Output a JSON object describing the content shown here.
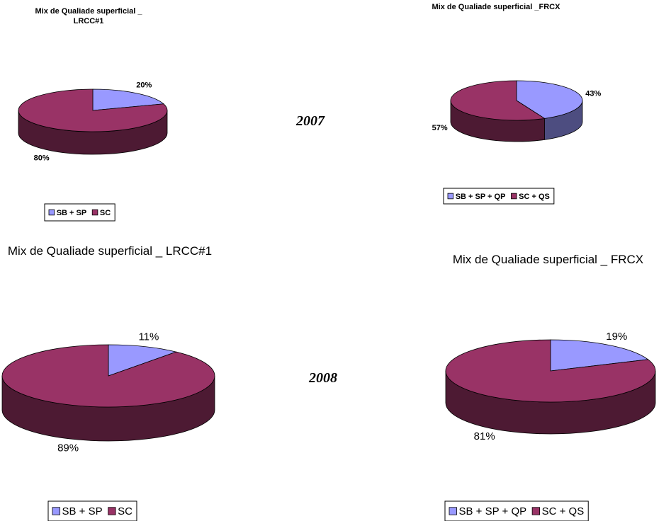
{
  "year_labels": [
    "2007",
    "2008"
  ],
  "chart_data": [
    {
      "type": "pie",
      "title": "Mix de Qualiade superficial _ LRCC#1",
      "categories": [
        "SB + SP",
        "SC"
      ],
      "values": [
        20,
        80
      ],
      "value_labels": [
        "20%",
        "80%"
      ],
      "colors": [
        "#9999ff",
        "#993366"
      ],
      "legend": "bottom"
    },
    {
      "type": "pie",
      "title": "Mix de Qualiade superficial _FRCX",
      "categories": [
        "SB + SP + QP",
        "SC + QS"
      ],
      "values": [
        43,
        57
      ],
      "value_labels": [
        "43%",
        "57%"
      ],
      "colors": [
        "#9999ff",
        "#993366"
      ],
      "legend": "bottom"
    },
    {
      "type": "pie",
      "title": "Mix de Qualiade superficial _ LRCC#1",
      "categories": [
        "SB + SP",
        "SC"
      ],
      "values": [
        11,
        89
      ],
      "value_labels": [
        "11%",
        "89%"
      ],
      "colors": [
        "#9999ff",
        "#993366"
      ],
      "legend": "bottom"
    },
    {
      "type": "pie",
      "title": "Mix de Qualiade superficial _ FRCX",
      "categories": [
        "SB + SP + QP",
        "SC + QS"
      ],
      "values": [
        19,
        81
      ],
      "value_labels": [
        "19%",
        "81%"
      ],
      "colors": [
        "#9999ff",
        "#993366"
      ],
      "legend": "bottom"
    }
  ]
}
